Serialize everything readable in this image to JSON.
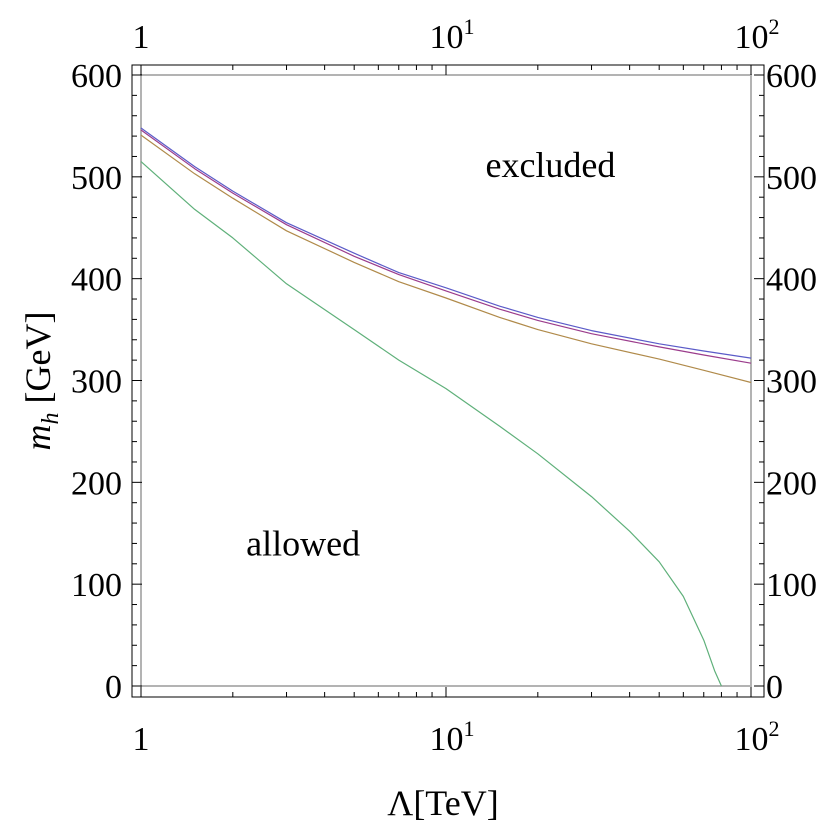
{
  "chart_data": {
    "type": "line",
    "xscale": "log",
    "xlim": [
      1,
      100
    ],
    "ylim": [
      0,
      600
    ],
    "grid": false,
    "xlabel": "Λ[TeV]",
    "ylabel_base": "m",
    "ylabel_sub": "h",
    "ylabel_unit": " [GeV]",
    "x_ticks": [
      {
        "value": 1,
        "base": "1",
        "exp": ""
      },
      {
        "value": 10,
        "base": "10",
        "exp": "1"
      },
      {
        "value": 100,
        "base": "10",
        "exp": "2"
      }
    ],
    "y_ticks": [
      {
        "value": 0,
        "label": "0"
      },
      {
        "value": 100,
        "label": "100"
      },
      {
        "value": 200,
        "label": "200"
      },
      {
        "value": 300,
        "label": "300"
      },
      {
        "value": 400,
        "label": "400"
      },
      {
        "value": 500,
        "label": "500"
      },
      {
        "value": 600,
        "label": "600"
      }
    ],
    "annotations": [
      {
        "text": "excluded",
        "x": 22,
        "y": 500
      },
      {
        "text": "allowed",
        "x": 3.4,
        "y": 128
      }
    ],
    "series": [
      {
        "color": "#5b5bc8",
        "x": [
          1,
          1.5,
          2,
          3,
          5,
          7,
          10,
          15,
          20,
          30,
          50,
          70,
          100
        ],
        "y": [
          548,
          510,
          486,
          455,
          425,
          406,
          391,
          373,
          362,
          349,
          336,
          329,
          322
        ]
      },
      {
        "color": "#9b3c8c",
        "x": [
          1,
          1.5,
          2,
          3,
          5,
          7,
          10,
          15,
          20,
          30,
          50,
          70,
          100
        ],
        "y": [
          546,
          508,
          484,
          453,
          422,
          404,
          388,
          370,
          359,
          346,
          333,
          325,
          317
        ]
      },
      {
        "color": "#b08a4a",
        "x": [
          1,
          1.5,
          2,
          3,
          5,
          7,
          10,
          15,
          20,
          30,
          50,
          70,
          100
        ],
        "y": [
          541,
          503,
          479,
          447,
          416,
          397,
          381,
          362,
          350,
          336,
          321,
          310,
          298
        ]
      },
      {
        "color": "#5fb07a",
        "x": [
          1,
          1.5,
          2,
          3,
          5,
          7,
          10,
          15,
          20,
          30,
          40,
          50,
          60,
          70,
          76,
          80
        ],
        "y": [
          515,
          468,
          440,
          395,
          350,
          320,
          292,
          255,
          228,
          186,
          152,
          122,
          88,
          45,
          15,
          0
        ]
      }
    ]
  }
}
